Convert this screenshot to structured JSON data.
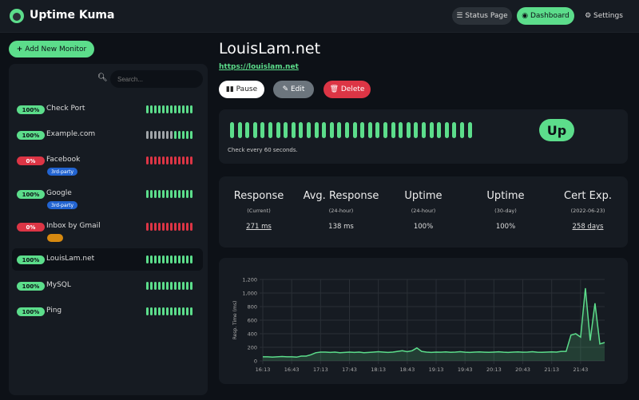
{
  "header": {
    "brand": "Uptime Kuma",
    "nav": [
      "Status Page",
      "Dashboard",
      "Settings"
    ]
  },
  "sidebar": {
    "add_button": "Add New Monitor",
    "search_placeholder": "Search...",
    "monitors": [
      {
        "name": "Check Port",
        "uptime": "100%",
        "beats": [
          "up",
          "up",
          "up",
          "up",
          "up",
          "up",
          "up",
          "up",
          "up",
          "up",
          "up",
          "up"
        ]
      },
      {
        "name": "Example.com",
        "uptime": "100%",
        "beats": [
          "none",
          "none",
          "none",
          "none",
          "none",
          "none",
          "none",
          "up",
          "up",
          "up",
          "up",
          "up"
        ]
      },
      {
        "name": "Facebook",
        "uptime": "0%",
        "tags": [
          {
            "name": "3rd-party",
            "color": "#2264d1"
          }
        ],
        "beats": [
          "down",
          "down",
          "down",
          "down",
          "down",
          "down",
          "down",
          "down",
          "down",
          "down",
          "down",
          "down"
        ]
      },
      {
        "name": "Google",
        "uptime": "100%",
        "tags": [
          {
            "name": "3rd-party",
            "color": "#2264d1"
          }
        ],
        "beats": [
          "up",
          "up",
          "up",
          "up",
          "up",
          "up",
          "up",
          "up",
          "up",
          "up",
          "up",
          "up"
        ]
      },
      {
        "name": "Inbox by Gmail",
        "uptime": "0%",
        "tags": [
          {
            "color": "#d68910"
          }
        ],
        "beats": [
          "down",
          "down",
          "down",
          "down",
          "down",
          "down",
          "down",
          "down",
          "down",
          "down",
          "down",
          "down"
        ]
      },
      {
        "name": "LouisLam.net",
        "uptime": "100%",
        "beats": [
          "up",
          "up",
          "up",
          "up",
          "up",
          "up",
          "up",
          "up",
          "up",
          "up",
          "up",
          "up"
        ]
      },
      {
        "name": "MySQL",
        "uptime": "100%",
        "beats": [
          "up",
          "up",
          "up",
          "up",
          "up",
          "up",
          "up",
          "up",
          "up",
          "up",
          "up",
          "up"
        ]
      },
      {
        "name": "Ping",
        "uptime": "100%",
        "beats": [
          "up",
          "up",
          "up",
          "up",
          "up",
          "up",
          "up",
          "up",
          "up",
          "up",
          "up",
          "up"
        ]
      }
    ]
  },
  "monitor": {
    "name": "LouisLam.net",
    "url": "https://louislam.net",
    "actions": [
      "Pause",
      "Edit",
      "Delete"
    ],
    "beats": [
      "up",
      "up",
      "up",
      "up",
      "up",
      "up",
      "up",
      "up",
      "up",
      "up",
      "up",
      "up",
      "up",
      "up",
      "up",
      "up",
      "up",
      "up",
      "up",
      "up",
      "up",
      "up",
      "up",
      "up",
      "up",
      "up",
      "up",
      "up",
      "up",
      "up",
      "up",
      "up"
    ],
    "status": "Up",
    "interval_text": "Check every 60 seconds.",
    "stats": [
      {
        "title": "Response",
        "period": "(Current)",
        "value": "271 ms"
      },
      {
        "title": "Avg. Response",
        "period": "(24-hour)",
        "value": "138 ms"
      },
      {
        "title": "Uptime",
        "period": "(24-hour)",
        "value": "100%"
      },
      {
        "title": "Uptime",
        "period": "(30-day)",
        "value": "100%"
      },
      {
        "title": "Cert Exp.",
        "period": "(2022-06-23)",
        "value": "258 days"
      }
    ]
  },
  "chart_data": {
    "type": "line",
    "y_label": "Resp. Time (ms)",
    "x": [
      "16:13",
      "16:18",
      "16:23",
      "16:28",
      "16:33",
      "16:38",
      "16:43",
      "16:48",
      "16:53",
      "16:58",
      "17:03",
      "17:08",
      "17:13",
      "17:18",
      "17:23",
      "17:28",
      "17:33",
      "17:38",
      "17:43",
      "17:48",
      "17:53",
      "17:58",
      "18:03",
      "18:08",
      "18:13",
      "18:18",
      "18:23",
      "18:28",
      "18:33",
      "18:38",
      "18:43",
      "18:48",
      "18:53",
      "18:58",
      "19:03",
      "19:08",
      "19:13",
      "19:18",
      "19:23",
      "19:28",
      "19:33",
      "19:38",
      "19:43",
      "19:48",
      "19:53",
      "19:58",
      "20:03",
      "20:08",
      "20:13",
      "20:18",
      "20:23",
      "20:28",
      "20:33",
      "20:38",
      "20:43",
      "20:48",
      "20:53",
      "20:58",
      "21:03",
      "21:08",
      "21:13",
      "21:18",
      "21:23",
      "21:28",
      "21:33",
      "21:38",
      "21:43",
      "21:48",
      "21:53",
      "21:58",
      "22:03",
      "22:08"
    ],
    "xlim": [
      "16:13",
      "22:08"
    ],
    "xticks": [
      "16:13",
      "16:43",
      "17:13",
      "17:43",
      "18:13",
      "18:43",
      "19:13",
      "19:43",
      "20:13",
      "20:43",
      "21:13",
      "21:43"
    ],
    "ylim": [
      0,
      1200
    ],
    "yticks": [
      0,
      200,
      400,
      600,
      800,
      {
        "value": 1000,
        "label": "1,000"
      },
      {
        "value": 1200,
        "label": "1,200"
      }
    ],
    "grid": true,
    "series": [
      {
        "color": "#5cdd8b",
        "values": [
          60,
          60,
          55,
          60,
          65,
          60,
          60,
          55,
          70,
          70,
          90,
          120,
          130,
          130,
          125,
          130,
          120,
          125,
          130,
          125,
          130,
          120,
          125,
          130,
          135,
          130,
          125,
          130,
          140,
          150,
          135,
          150,
          190,
          140,
          130,
          125,
          130,
          128,
          132,
          126,
          130,
          135,
          128,
          125,
          130,
          132,
          128,
          126,
          130,
          134,
          128,
          125,
          130,
          132,
          128,
          130,
          135,
          128,
          126,
          130,
          132,
          130,
          140,
          140,
          380,
          400,
          350,
          1070,
          300,
          850,
          250,
          270
        ]
      }
    ]
  }
}
